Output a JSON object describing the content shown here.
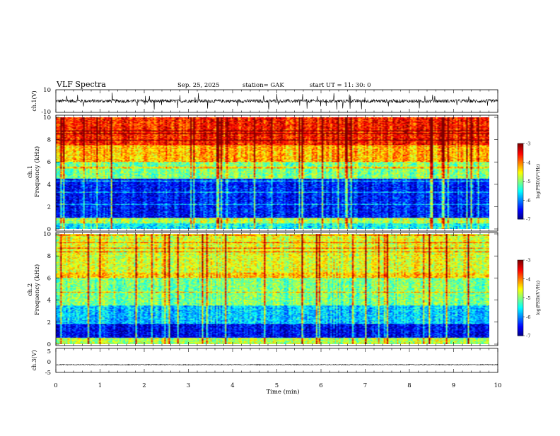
{
  "header": {
    "title": "VLF  Spectra",
    "date": "Sep. 25, 2025",
    "station": "station= GAK",
    "start_ut": "start  UT  =   11: 30: 0"
  },
  "chart_data": [
    {
      "type": "line",
      "ylabel": "ch.1(V)",
      "ylim": [
        -10,
        10
      ],
      "yticks": [
        "10",
        "-10"
      ],
      "baseline": 0,
      "noise_amplitude": 1.5
    },
    {
      "type": "heatmap",
      "ylabel": "ch.1\nFrequency  (kHz)",
      "ylim": [
        0,
        10
      ],
      "yticks": [
        "0",
        "2",
        "4",
        "6",
        "8",
        "10"
      ],
      "colorbar": {
        "label": "log(PSD)(V²/Hz)",
        "range": [
          -7,
          -3
        ],
        "ticks": [
          "-3",
          "-4",
          "-5",
          "-6",
          "-7"
        ]
      },
      "bands": [
        {
          "from": 0,
          "to": 0.5,
          "level": -5.5
        },
        {
          "from": 0.5,
          "to": 1.0,
          "level": -4.8
        },
        {
          "from": 1.0,
          "to": 4.5,
          "level": -6.4
        },
        {
          "from": 4.5,
          "to": 6.0,
          "level": -5.0
        },
        {
          "from": 6.0,
          "to": 7.5,
          "level": -4.2
        },
        {
          "from": 7.5,
          "to": 10,
          "level": -3.6
        }
      ]
    },
    {
      "type": "heatmap",
      "ylabel": "ch.2\nFrequency  (kHz)",
      "ylim": [
        0,
        10
      ],
      "yticks": [
        "0",
        "2",
        "4",
        "6",
        "8",
        "10"
      ],
      "colorbar": {
        "label": "log(PSD)(V²/Hz)",
        "range": [
          -7,
          -3
        ],
        "ticks": [
          "-3",
          "-4",
          "-5",
          "-6",
          "-7"
        ]
      },
      "bands": [
        {
          "from": 0,
          "to": 0.6,
          "level": -4.8
        },
        {
          "from": 0.6,
          "to": 1.8,
          "level": -6.5
        },
        {
          "from": 1.8,
          "to": 3.5,
          "level": -5.7
        },
        {
          "from": 3.5,
          "to": 6.0,
          "level": -5.0
        },
        {
          "from": 6.0,
          "to": 6.5,
          "level": -4.3
        },
        {
          "from": 6.5,
          "to": 10,
          "level": -4.6
        }
      ]
    },
    {
      "type": "line",
      "ylabel": "ch.3(V)",
      "ylim": [
        -5,
        5
      ],
      "yticks": [
        "5",
        "0",
        "-5"
      ],
      "baseline": -1.8,
      "noise_amplitude": 0.2
    }
  ],
  "x_axis": {
    "label": "Time  (min)",
    "range": [
      0,
      10
    ],
    "ticks": [
      "0",
      "1",
      "2",
      "3",
      "4",
      "5",
      "6",
      "7",
      "8",
      "9",
      "10"
    ]
  },
  "colors": {
    "trace": "#000000",
    "axis": "#000000"
  }
}
